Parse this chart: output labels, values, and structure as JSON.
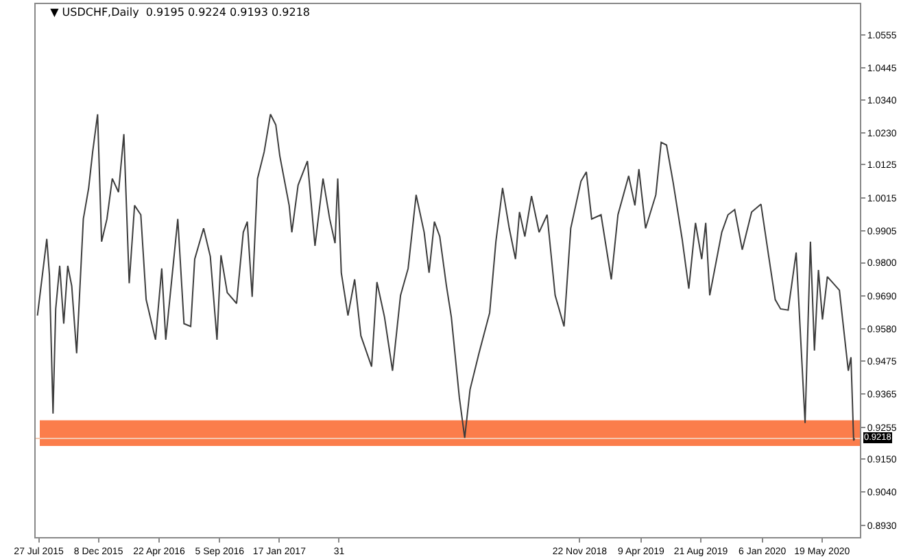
{
  "chart_data": {
    "type": "line",
    "title": "▼ USDCHF,Daily  0.9195 0.9224 0.9193 0.9218",
    "x": [
      "2015-07-24",
      "2015-08-14",
      "2015-08-20",
      "2015-08-28",
      "2015-09-03",
      "2015-09-12",
      "2015-09-21",
      "2015-09-30",
      "2015-10-09",
      "2015-10-20",
      "2015-11-04",
      "2015-11-16",
      "2015-11-25",
      "2015-12-06",
      "2015-12-15",
      "2015-12-27",
      "2016-01-08",
      "2016-01-22",
      "2016-02-03",
      "2016-02-15",
      "2016-02-27",
      "2016-03-12",
      "2016-03-24",
      "2016-04-14",
      "2016-04-28",
      "2016-05-07",
      "2016-06-03",
      "2016-06-17",
      "2016-07-02",
      "2016-07-11",
      "2016-07-31",
      "2016-08-15",
      "2016-08-30",
      "2016-09-08",
      "2016-09-22",
      "2016-10-13",
      "2016-10-28",
      "2016-11-06",
      "2016-11-17",
      "2016-11-29",
      "2016-12-14",
      "2016-12-28",
      "2017-01-09",
      "2017-01-18",
      "2017-02-08",
      "2017-02-14",
      "2017-02-28",
      "2017-03-21",
      "2017-04-07",
      "2017-04-25",
      "2017-05-10",
      "2017-05-22",
      "2017-05-28",
      "2017-06-05",
      "2017-06-20",
      "2017-07-05",
      "2017-07-19",
      "2017-08-12",
      "2017-08-24",
      "2017-09-10",
      "2017-09-28",
      "2017-10-16",
      "2017-11-02",
      "2017-11-20",
      "2017-12-08",
      "2017-12-19",
      "2017-12-31",
      "2018-01-12",
      "2018-01-27",
      "2018-02-07",
      "2018-02-25",
      "2018-03-09",
      "2018-03-21",
      "2018-04-10",
      "2018-05-04",
      "2018-05-18",
      "2018-06-02",
      "2018-06-17",
      "2018-07-01",
      "2018-07-10",
      "2018-07-22",
      "2018-08-06",
      "2018-08-23",
      "2018-09-10",
      "2018-09-28",
      "2018-10-18",
      "2018-11-02",
      "2018-11-25",
      "2018-12-07",
      "2018-12-19",
      "2019-01-09",
      "2019-02-01",
      "2019-02-16",
      "2019-03-12",
      "2019-03-26",
      "2019-04-04",
      "2019-04-19",
      "2019-05-12",
      "2019-05-24",
      "2019-06-05",
      "2019-06-20",
      "2019-07-10",
      "2019-07-25",
      "2019-08-09",
      "2019-08-23",
      "2019-09-01",
      "2019-09-10",
      "2019-10-07",
      "2019-10-21",
      "2019-11-05",
      "2019-11-22",
      "2019-12-13",
      "2020-01-03",
      "2020-01-20",
      "2020-02-04",
      "2020-02-16",
      "2020-03-04",
      "2020-03-22",
      "2020-04-11",
      "2020-04-23",
      "2020-05-02",
      "2020-05-11",
      "2020-05-20",
      "2020-05-31",
      "2020-06-27",
      "2020-07-17",
      "2020-07-23",
      "2020-07-29",
      "2020-07-31"
    ],
    "series": [
      {
        "color": "#3c3c3c",
        "values": [
          0.9625,
          0.9879,
          0.9758,
          0.93,
          0.9647,
          0.979,
          0.9598,
          0.979,
          0.9723,
          0.95,
          0.9945,
          1.0048,
          1.0168,
          1.0292,
          0.987,
          0.9945,
          1.0079,
          1.0034,
          1.0226,
          0.9732,
          0.999,
          0.9959,
          0.9678,
          0.9545,
          0.9781,
          0.9545,
          0.9945,
          0.9598,
          0.9589,
          0.9812,
          0.9914,
          0.9821,
          0.9545,
          0.9825,
          0.9701,
          0.9665,
          0.9901,
          0.9936,
          0.9687,
          1.0079,
          1.0168,
          1.0292,
          1.0257,
          1.0154,
          0.999,
          0.9901,
          1.0057,
          1.0137,
          0.9856,
          1.0079,
          0.9945,
          0.9865,
          1.0079,
          0.9767,
          0.9625,
          0.9745,
          0.9558,
          0.9456,
          0.9736,
          0.962,
          0.9442,
          0.9692,
          0.9781,
          1.0025,
          0.9901,
          0.9767,
          0.9936,
          0.9887,
          0.9723,
          0.962,
          0.9353,
          0.922,
          0.938,
          0.95,
          0.9634,
          0.987,
          1.0048,
          0.9914,
          0.9812,
          0.9968,
          0.9887,
          1.0021,
          0.9901,
          0.9959,
          0.9692,
          0.9589,
          0.9914,
          1.007,
          1.0101,
          0.9945,
          0.9959,
          0.9745,
          0.9959,
          1.0088,
          0.999,
          1.011,
          0.9914,
          1.0025,
          1.0199,
          1.019,
          1.0065,
          0.9879,
          0.9714,
          0.9932,
          0.9812,
          0.9932,
          0.9692,
          0.9901,
          0.9959,
          0.9976,
          0.9843,
          0.9968,
          0.9994,
          0.9825,
          0.9678,
          0.9647,
          0.9643,
          0.9834,
          0.9269,
          0.987,
          0.9509,
          0.9776,
          0.9612,
          0.9754,
          0.9709,
          0.9442,
          0.9487,
          0.9211,
          0.9218
        ]
      }
    ],
    "xlim": [
      "2015-07-20",
      "2020-08-12"
    ],
    "xticks": [
      {
        "value": "2015-07-27",
        "label": "27 Jul 2015"
      },
      {
        "value": "2015-12-08",
        "label": "8 Dec 2015"
      },
      {
        "value": "2016-04-22",
        "label": "22 Apr 2016"
      },
      {
        "value": "2016-09-05",
        "label": "5 Sep 2016"
      },
      {
        "value": "2017-01-17",
        "label": "17 Jan 2017"
      },
      {
        "value": "2017-05-31",
        "label": "31"
      },
      {
        "value": "2018-11-22",
        "label": "22 Nov 2018"
      },
      {
        "value": "2019-04-09",
        "label": "9 Apr 2019"
      },
      {
        "value": "2019-08-21",
        "label": "21 Aug 2019"
      },
      {
        "value": "2020-01-06",
        "label": "6 Jan 2020"
      },
      {
        "value": "2020-05-19",
        "label": "19 May 2020"
      }
    ],
    "ylim": [
      0.8891,
      1.0657
    ],
    "yticks": [
      {
        "value": 0.893,
        "label": "0.8930"
      },
      {
        "value": 0.904,
        "label": "0.9040"
      },
      {
        "value": 0.915,
        "label": "0.9150"
      },
      {
        "value": 0.9255,
        "label": "0.9255"
      },
      {
        "value": 0.9365,
        "label": "0.9365"
      },
      {
        "value": 0.9475,
        "label": "0.9475"
      },
      {
        "value": 0.958,
        "label": "0.9580"
      },
      {
        "value": 0.969,
        "label": "0.9690"
      },
      {
        "value": 0.98,
        "label": "0.9800"
      },
      {
        "value": 0.9905,
        "label": "0.9905"
      },
      {
        "value": 1.0015,
        "label": "1.0015"
      },
      {
        "value": 1.0125,
        "label": "1.0125"
      },
      {
        "value": 1.023,
        "label": "1.0230"
      },
      {
        "value": 1.034,
        "label": "1.0340"
      },
      {
        "value": 1.0445,
        "label": "1.0445"
      },
      {
        "value": 1.0555,
        "label": "1.0555"
      }
    ],
    "bands": [
      {
        "axis": "y",
        "from": 0.9193,
        "to": 0.9278,
        "color": "#fb7d4b"
      }
    ],
    "ref_lines": [
      {
        "axis": "y",
        "value": 0.9218,
        "label": "0.9218",
        "color": "#f4c7b0"
      }
    ],
    "grid": false,
    "legend": false,
    "marker": "none",
    "line_style": "solid"
  }
}
